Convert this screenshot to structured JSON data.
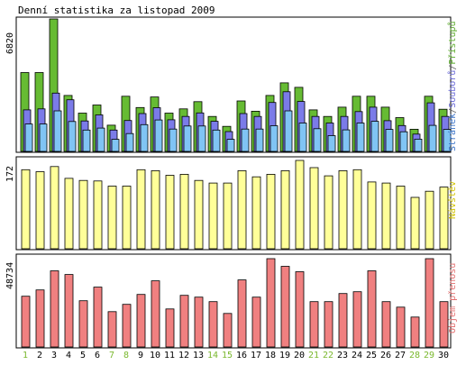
{
  "title": "Denní statistika za listopad 2009",
  "chart_data": [
    {
      "type": "bar",
      "panel": "top",
      "y_label": "6820",
      "legend_parts": [
        {
          "text": "Stránek",
          "color": "#3c74c8"
        },
        {
          "text": "/",
          "color": "#606060"
        },
        {
          "text": "Souborů",
          "color": "#6a6ad8"
        },
        {
          "text": "/",
          "color": "#606060"
        },
        {
          "text": "Přístupů",
          "color": "#5aaa2a"
        }
      ],
      "ymax": 6820,
      "categories": [
        "1",
        "2",
        "3",
        "4",
        "5",
        "6",
        "7",
        "8",
        "9",
        "10",
        "11",
        "12",
        "13",
        "14",
        "15",
        "16",
        "17",
        "18",
        "19",
        "20",
        "21",
        "22",
        "23",
        "24",
        "25",
        "26",
        "27",
        "28",
        "29",
        "30"
      ],
      "series": [
        {
          "name": "Přístupů",
          "color": "#66bb33",
          "values": [
            4060,
            4060,
            6820,
            2880,
            1970,
            2390,
            1350,
            2840,
            2260,
            2800,
            1970,
            2190,
            2560,
            1800,
            1290,
            2600,
            2070,
            2880,
            3530,
            3300,
            2140,
            1800,
            2280,
            2840,
            2840,
            2280,
            1740,
            1140,
            2840,
            2170
          ]
        },
        {
          "name": "Souborů",
          "color": "#7b7be8",
          "values": [
            2140,
            2190,
            3000,
            2660,
            1570,
            1880,
            1100,
            1590,
            1950,
            2250,
            1630,
            1800,
            1980,
            1550,
            1020,
            1950,
            1800,
            2520,
            3070,
            2570,
            1800,
            1460,
            1800,
            2050,
            2280,
            1580,
            1330,
            890,
            2500,
            1800
          ]
        },
        {
          "name": "Stránek",
          "color": "#80c4f4",
          "values": [
            1410,
            1410,
            2090,
            1540,
            1100,
            1200,
            620,
            920,
            1380,
            1620,
            1150,
            1310,
            1310,
            1100,
            620,
            1150,
            1150,
            1320,
            2090,
            1460,
            1170,
            810,
            1110,
            1460,
            1550,
            1130,
            1010,
            630,
            1340,
            1130
          ]
        }
      ]
    },
    {
      "type": "bar",
      "panel": "middle",
      "y_label": "172",
      "legend_parts": [
        {
          "text": "Návštěv",
          "color": "#d2c300"
        }
      ],
      "ymax": 172,
      "series": [
        {
          "name": "Návštěv",
          "color": "#ffff99",
          "values": [
            154,
            150,
            160,
            137,
            133,
            132,
            122,
            122,
            154,
            152,
            143,
            145,
            133,
            128,
            128,
            152,
            140,
            145,
            152,
            172,
            158,
            142,
            152,
            154,
            130,
            128,
            122,
            100,
            112,
            120
          ]
        }
      ]
    },
    {
      "type": "bar",
      "panel": "bottom",
      "y_label": "48734",
      "legend_parts": [
        {
          "text": "Objem přenosu",
          "color": "#e36f6f"
        }
      ],
      "ymax": 48734,
      "series": [
        {
          "name": "Objem přenosu",
          "color": "#f08080",
          "values": [
            28000,
            31500,
            42000,
            40000,
            25500,
            33000,
            19500,
            23500,
            29000,
            36500,
            21000,
            28500,
            27500,
            25000,
            18500,
            37000,
            27500,
            48734,
            44500,
            41500,
            25000,
            25000,
            29500,
            30500,
            42000,
            25000,
            22000,
            16500,
            48734,
            25000
          ]
        }
      ]
    }
  ],
  "x_labels": {
    "values": [
      "1",
      "2",
      "3",
      "4",
      "5",
      "6",
      "7",
      "8",
      "9",
      "10",
      "11",
      "12",
      "13",
      "14",
      "15",
      "16",
      "17",
      "18",
      "19",
      "20",
      "21",
      "22",
      "23",
      "24",
      "25",
      "26",
      "27",
      "28",
      "29",
      "30"
    ],
    "weekend_days": [
      "1",
      "7",
      "8",
      "14",
      "15",
      "21",
      "22",
      "28",
      "29"
    ],
    "weekend_color": "#7ab82e",
    "weekday_color": "#000000"
  }
}
